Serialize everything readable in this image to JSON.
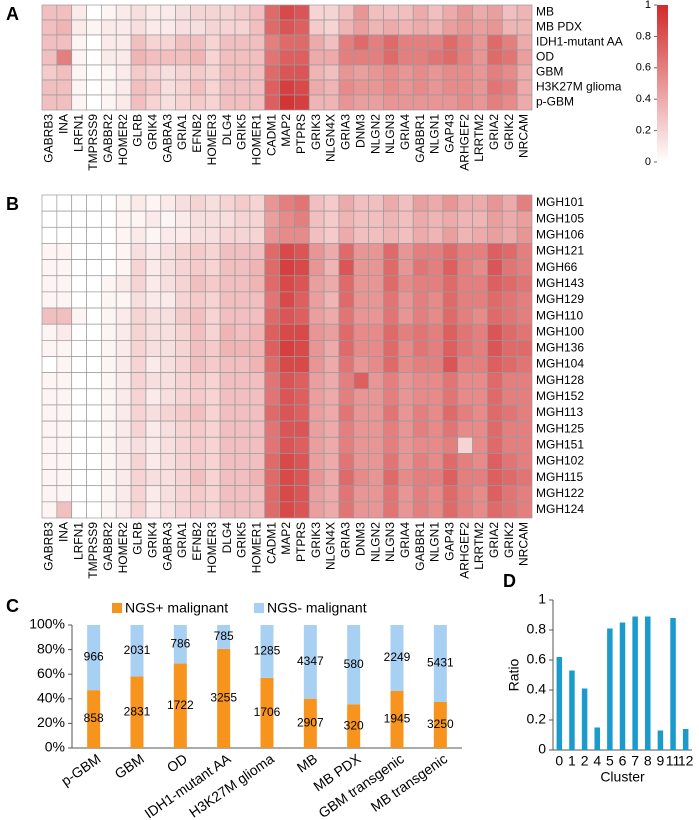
{
  "chart_data": [
    {
      "type": "heatmap",
      "label": "A",
      "x": [
        "GABRB3",
        "INA",
        "LRFN1",
        "TMPRSS9",
        "GABBR2",
        "HOMER2",
        "GLRB",
        "GRIK4",
        "GABRA3",
        "GRIA1",
        "EFNB2",
        "HOMER3",
        "DLG4",
        "GRIK5",
        "HOMER1",
        "CADM1",
        "MAP2",
        "PTPRS",
        "GRIK3",
        "NLGN4X",
        "GRIA3",
        "DNM3",
        "NLGN2",
        "NLGN3",
        "GRIA4",
        "GABBR1",
        "NLGN1",
        "GAP43",
        "ARHGEF2",
        "LRRTM2",
        "GRIA2",
        "GRIK2",
        "NRCAM"
      ],
      "y": [
        "MB",
        "MB PDX",
        "IDH1-mutant AA",
        "OD",
        "GBM",
        "H3K27M glioma",
        "p-GBM"
      ],
      "values": [
        [
          0.3,
          0.3,
          0.1,
          0,
          0.05,
          0.1,
          0.15,
          0.1,
          0.1,
          0.15,
          0.2,
          0.2,
          0.2,
          0.25,
          0.3,
          0.7,
          0.85,
          0.8,
          0.2,
          0.2,
          0.3,
          0.5,
          0.3,
          0.3,
          0.3,
          0.4,
          0.3,
          0.4,
          0.5,
          0.4,
          0.45,
          0.3,
          0.35
        ],
        [
          0.3,
          0.35,
          0.1,
          0.05,
          0.1,
          0.1,
          0.15,
          0.1,
          0.1,
          0.15,
          0.15,
          0.2,
          0.2,
          0.2,
          0.3,
          0.7,
          0.8,
          0.75,
          0.25,
          0.2,
          0.35,
          0.45,
          0.35,
          0.4,
          0.35,
          0.4,
          0.35,
          0.45,
          0.5,
          0.45,
          0.5,
          0.35,
          0.35
        ],
        [
          0.3,
          0.3,
          0.05,
          0,
          0.1,
          0.1,
          0.3,
          0.2,
          0.2,
          0.3,
          0.3,
          0.2,
          0.3,
          0.3,
          0.3,
          0.6,
          0.7,
          0.7,
          0.4,
          0.3,
          0.6,
          0.7,
          0.6,
          0.7,
          0.6,
          0.6,
          0.6,
          0.7,
          0.6,
          0.5,
          0.7,
          0.6,
          0.4
        ],
        [
          0.3,
          0.6,
          0.05,
          0,
          0.1,
          0.1,
          0.35,
          0.3,
          0.3,
          0.3,
          0.35,
          0.2,
          0.3,
          0.3,
          0.3,
          0.65,
          0.75,
          0.75,
          0.4,
          0.4,
          0.6,
          0.6,
          0.6,
          0.7,
          0.6,
          0.6,
          0.65,
          0.7,
          0.6,
          0.5,
          0.7,
          0.65,
          0.45
        ],
        [
          0.25,
          0.3,
          0.05,
          0,
          0.05,
          0.1,
          0.25,
          0.2,
          0.15,
          0.2,
          0.25,
          0.2,
          0.3,
          0.3,
          0.3,
          0.7,
          0.8,
          0.8,
          0.35,
          0.3,
          0.5,
          0.45,
          0.5,
          0.55,
          0.5,
          0.55,
          0.5,
          0.55,
          0.55,
          0.5,
          0.6,
          0.55,
          0.4
        ],
        [
          0.3,
          0.3,
          0.05,
          0,
          0.05,
          0.1,
          0.3,
          0.25,
          0.15,
          0.2,
          0.3,
          0.2,
          0.3,
          0.3,
          0.3,
          0.75,
          0.9,
          0.85,
          0.4,
          0.35,
          0.55,
          0.5,
          0.5,
          0.55,
          0.5,
          0.55,
          0.5,
          0.55,
          0.55,
          0.5,
          0.65,
          0.6,
          0.4
        ],
        [
          0.3,
          0.3,
          0.05,
          0,
          0.05,
          0.1,
          0.3,
          0.2,
          0.15,
          0.2,
          0.25,
          0.2,
          0.3,
          0.3,
          0.3,
          0.75,
          0.95,
          0.9,
          0.35,
          0.35,
          0.5,
          0.45,
          0.45,
          0.5,
          0.5,
          0.5,
          0.5,
          0.5,
          0.55,
          0.5,
          0.6,
          0.55,
          0.4
        ]
      ],
      "colorscale": [
        "#ffffff",
        "#d12a2a"
      ],
      "zlim": [
        0,
        1
      ],
      "zticks": [
        0,
        0.2,
        0.4,
        0.6,
        0.8,
        1
      ]
    },
    {
      "type": "heatmap",
      "label": "B",
      "x": [
        "GABRB3",
        "INA",
        "LRFN1",
        "TMPRSS9",
        "GABBR2",
        "HOMER2",
        "GLRB",
        "GRIK4",
        "GABRA3",
        "GRIA1",
        "EFNB2",
        "HOMER3",
        "DLG4",
        "GRIK5",
        "HOMER1",
        "CADM1",
        "MAP2",
        "PTPRS",
        "GRIK3",
        "NLGN4X",
        "GRIA3",
        "DNM3",
        "NLGN2",
        "NLGN3",
        "GRIA4",
        "GABBR1",
        "NLGN1",
        "GAP43",
        "ARHGEF2",
        "LRRTM2",
        "GRIA2",
        "GRIK2",
        "NRCAM"
      ],
      "y": [
        "MGH101",
        "MGH105",
        "MGH106",
        "MGH121",
        "MGH66",
        "MGH143",
        "MGH129",
        "MGH110",
        "MGH100",
        "MGH136",
        "MGH104",
        "MGH128",
        "MGH152",
        "MGH113",
        "MGH125",
        "MGH151",
        "MGH102",
        "MGH115",
        "MGH122",
        "MGH124"
      ],
      "values": [
        [
          0,
          0,
          0,
          0,
          0,
          0.05,
          0.1,
          0.05,
          0.1,
          0.15,
          0.2,
          0.15,
          0.2,
          0.25,
          0.2,
          0.5,
          0.6,
          0.65,
          0.3,
          0.25,
          0.4,
          0.3,
          0.3,
          0.4,
          0.3,
          0.45,
          0.4,
          0.5,
          0.4,
          0.4,
          0.5,
          0.4,
          0.6
        ],
        [
          0,
          0,
          0,
          0,
          0,
          0.05,
          0.05,
          0.1,
          0.05,
          0.1,
          0.15,
          0.15,
          0.15,
          0.2,
          0.2,
          0.45,
          0.55,
          0.6,
          0.3,
          0.25,
          0.35,
          0.3,
          0.3,
          0.35,
          0.3,
          0.4,
          0.35,
          0.4,
          0.35,
          0.35,
          0.45,
          0.4,
          0.45
        ],
        [
          0,
          0,
          0,
          0,
          0,
          0.05,
          0.1,
          0.05,
          0.1,
          0.1,
          0.15,
          0.15,
          0.2,
          0.2,
          0.2,
          0.5,
          0.55,
          0.55,
          0.3,
          0.25,
          0.4,
          0.3,
          0.3,
          0.35,
          0.3,
          0.4,
          0.35,
          0.45,
          0.35,
          0.4,
          0.45,
          0.4,
          0.5
        ],
        [
          0.05,
          0.05,
          0,
          0,
          0,
          0.05,
          0.15,
          0.1,
          0.15,
          0.2,
          0.25,
          0.2,
          0.3,
          0.3,
          0.3,
          0.7,
          0.85,
          0.8,
          0.5,
          0.4,
          0.7,
          0.5,
          0.5,
          0.7,
          0.5,
          0.6,
          0.6,
          0.7,
          0.6,
          0.6,
          0.75,
          0.7,
          0.6
        ],
        [
          0.05,
          0.05,
          0,
          0,
          0,
          0.05,
          0.2,
          0.1,
          0.15,
          0.2,
          0.25,
          0.2,
          0.3,
          0.3,
          0.35,
          0.7,
          0.9,
          0.85,
          0.5,
          0.35,
          0.8,
          0.5,
          0.5,
          0.7,
          0.5,
          0.65,
          0.6,
          0.75,
          0.6,
          0.55,
          0.8,
          0.65,
          0.6
        ],
        [
          0.05,
          0.05,
          0,
          0,
          0.05,
          0.1,
          0.2,
          0.1,
          0.15,
          0.2,
          0.3,
          0.25,
          0.3,
          0.3,
          0.35,
          0.7,
          0.85,
          0.8,
          0.45,
          0.4,
          0.7,
          0.5,
          0.5,
          0.7,
          0.55,
          0.6,
          0.6,
          0.7,
          0.6,
          0.6,
          0.75,
          0.7,
          0.65
        ],
        [
          0.05,
          0.05,
          0,
          0,
          0.05,
          0.05,
          0.15,
          0.1,
          0.1,
          0.2,
          0.25,
          0.2,
          0.3,
          0.3,
          0.3,
          0.65,
          0.85,
          0.75,
          0.45,
          0.35,
          0.7,
          0.5,
          0.5,
          0.65,
          0.5,
          0.6,
          0.55,
          0.7,
          0.6,
          0.6,
          0.7,
          0.65,
          0.6
        ],
        [
          0.3,
          0.3,
          0.05,
          0,
          0.05,
          0.1,
          0.2,
          0.15,
          0.15,
          0.25,
          0.3,
          0.2,
          0.3,
          0.3,
          0.3,
          0.7,
          0.8,
          0.75,
          0.45,
          0.4,
          0.65,
          0.5,
          0.5,
          0.65,
          0.5,
          0.6,
          0.55,
          0.7,
          0.6,
          0.55,
          0.7,
          0.65,
          0.6
        ],
        [
          0.05,
          0.1,
          0,
          0,
          0.05,
          0.1,
          0.2,
          0.15,
          0.15,
          0.2,
          0.3,
          0.2,
          0.35,
          0.3,
          0.35,
          0.75,
          0.85,
          0.85,
          0.5,
          0.45,
          0.7,
          0.55,
          0.55,
          0.7,
          0.6,
          0.65,
          0.6,
          0.75,
          0.65,
          0.6,
          0.8,
          0.7,
          0.65
        ],
        [
          0.05,
          0.05,
          0,
          0,
          0.05,
          0.1,
          0.2,
          0.15,
          0.15,
          0.2,
          0.3,
          0.25,
          0.35,
          0.35,
          0.35,
          0.75,
          0.9,
          0.85,
          0.5,
          0.4,
          0.7,
          0.55,
          0.55,
          0.7,
          0.55,
          0.65,
          0.6,
          0.75,
          0.65,
          0.6,
          0.8,
          0.7,
          0.7
        ],
        [
          0,
          0.05,
          0,
          0,
          0.05,
          0.1,
          0.2,
          0.1,
          0.15,
          0.2,
          0.3,
          0.25,
          0.3,
          0.3,
          0.35,
          0.7,
          0.85,
          0.85,
          0.5,
          0.4,
          0.65,
          0.5,
          0.55,
          0.7,
          0.55,
          0.6,
          0.6,
          0.8,
          0.6,
          0.6,
          0.75,
          0.7,
          0.65
        ],
        [
          0.05,
          0.05,
          0,
          0,
          0.05,
          0.1,
          0.2,
          0.15,
          0.15,
          0.2,
          0.25,
          0.2,
          0.3,
          0.3,
          0.3,
          0.65,
          0.8,
          0.75,
          0.45,
          0.4,
          0.6,
          0.75,
          0.5,
          0.6,
          0.5,
          0.55,
          0.55,
          0.65,
          0.55,
          0.55,
          0.7,
          0.6,
          0.6
        ],
        [
          0.05,
          0.05,
          0,
          0,
          0.05,
          0.1,
          0.2,
          0.1,
          0.15,
          0.2,
          0.25,
          0.2,
          0.3,
          0.3,
          0.3,
          0.65,
          0.8,
          0.75,
          0.45,
          0.4,
          0.6,
          0.5,
          0.5,
          0.6,
          0.5,
          0.55,
          0.55,
          0.65,
          0.55,
          0.55,
          0.7,
          0.6,
          0.6
        ],
        [
          0.05,
          0.05,
          0,
          0,
          0.05,
          0.1,
          0.2,
          0.15,
          0.2,
          0.25,
          0.3,
          0.2,
          0.3,
          0.3,
          0.3,
          0.7,
          0.8,
          0.75,
          0.45,
          0.4,
          0.65,
          0.5,
          0.5,
          0.65,
          0.5,
          0.6,
          0.55,
          0.7,
          0.6,
          0.55,
          0.7,
          0.65,
          0.6
        ],
        [
          0.05,
          0.05,
          0,
          0,
          0.05,
          0.1,
          0.2,
          0.1,
          0.15,
          0.2,
          0.25,
          0.2,
          0.3,
          0.3,
          0.3,
          0.65,
          0.8,
          0.8,
          0.45,
          0.4,
          0.6,
          0.5,
          0.5,
          0.6,
          0.5,
          0.6,
          0.55,
          0.65,
          0.55,
          0.55,
          0.7,
          0.6,
          0.6
        ],
        [
          0.05,
          0.05,
          0,
          0,
          0.05,
          0.1,
          0.15,
          0.1,
          0.15,
          0.2,
          0.25,
          0.2,
          0.3,
          0.3,
          0.3,
          0.65,
          0.8,
          0.75,
          0.45,
          0.4,
          0.6,
          0.5,
          0.5,
          0.6,
          0.5,
          0.55,
          0.55,
          0.6,
          0.2,
          0.55,
          0.7,
          0.6,
          0.6
        ],
        [
          0.05,
          0.05,
          0,
          0,
          0.05,
          0.1,
          0.2,
          0.1,
          0.15,
          0.2,
          0.25,
          0.2,
          0.3,
          0.3,
          0.3,
          0.7,
          0.85,
          0.8,
          0.45,
          0.4,
          0.65,
          0.5,
          0.5,
          0.65,
          0.5,
          0.6,
          0.55,
          0.7,
          0.6,
          0.55,
          0.75,
          0.65,
          0.6
        ],
        [
          0.05,
          0.05,
          0,
          0,
          0.05,
          0.1,
          0.2,
          0.15,
          0.15,
          0.2,
          0.3,
          0.2,
          0.3,
          0.3,
          0.35,
          0.7,
          0.85,
          0.8,
          0.5,
          0.4,
          0.7,
          0.55,
          0.5,
          0.7,
          0.55,
          0.6,
          0.6,
          0.75,
          0.6,
          0.6,
          0.75,
          0.7,
          0.65
        ],
        [
          0.05,
          0.05,
          0,
          0,
          0.05,
          0.1,
          0.2,
          0.1,
          0.15,
          0.2,
          0.25,
          0.2,
          0.3,
          0.3,
          0.3,
          0.7,
          0.85,
          0.8,
          0.45,
          0.4,
          0.65,
          0.5,
          0.5,
          0.65,
          0.5,
          0.6,
          0.55,
          0.7,
          0.6,
          0.55,
          0.75,
          0.65,
          0.6
        ],
        [
          0.05,
          0.3,
          0,
          0,
          0.05,
          0.1,
          0.2,
          0.1,
          0.15,
          0.2,
          0.25,
          0.2,
          0.3,
          0.3,
          0.3,
          0.7,
          0.85,
          0.8,
          0.45,
          0.4,
          0.65,
          0.5,
          0.5,
          0.65,
          0.5,
          0.6,
          0.55,
          0.7,
          0.6,
          0.55,
          0.7,
          0.65,
          0.6
        ]
      ],
      "colorscale": [
        "#ffffff",
        "#d12a2a"
      ],
      "zlim": [
        0,
        1
      ]
    },
    {
      "type": "bar",
      "label": "C",
      "stacking": "percent",
      "categories": [
        "p-GBM",
        "GBM",
        "OD",
        "IDH1-mutant AA",
        "H3K27M glioma",
        "MB",
        "MB PDX",
        "GBM transgenic",
        "MB transgenic"
      ],
      "series": [
        {
          "name": "NGS+ malignant",
          "color": "#f7941d",
          "values": [
            858,
            2831,
            1722,
            3255,
            1706,
            2907,
            320,
            1945,
            3250
          ]
        },
        {
          "name": "NGS- malignant",
          "color": "#a8d0f2",
          "values": [
            966,
            2031,
            786,
            785,
            1285,
            4347,
            580,
            2249,
            5431
          ]
        }
      ],
      "ylim": [
        0,
        100
      ],
      "yticks": [
        {
          "value": 0,
          "label": "0%"
        },
        {
          "value": 20,
          "label": "20%"
        },
        {
          "value": 40,
          "label": "40%"
        },
        {
          "value": 60,
          "label": "60%"
        },
        {
          "value": 80,
          "label": "80%"
        },
        {
          "value": 100,
          "label": "100%"
        }
      ],
      "legend": "top"
    },
    {
      "type": "bar",
      "label": "D",
      "categories": [
        "0",
        "1",
        "2",
        "4",
        "5",
        "6",
        "7",
        "8",
        "9",
        "11",
        "12"
      ],
      "values": [
        0.62,
        0.53,
        0.41,
        0.15,
        0.81,
        0.85,
        0.89,
        0.89,
        0.13,
        0.88,
        0.14
      ],
      "color": "#1a9bcc",
      "ylim": [
        0,
        1
      ],
      "yticks": [
        0,
        0.2,
        0.4,
        0.6,
        0.8,
        1
      ],
      "x_label": "Cluster",
      "y_label": "Ratio"
    }
  ]
}
